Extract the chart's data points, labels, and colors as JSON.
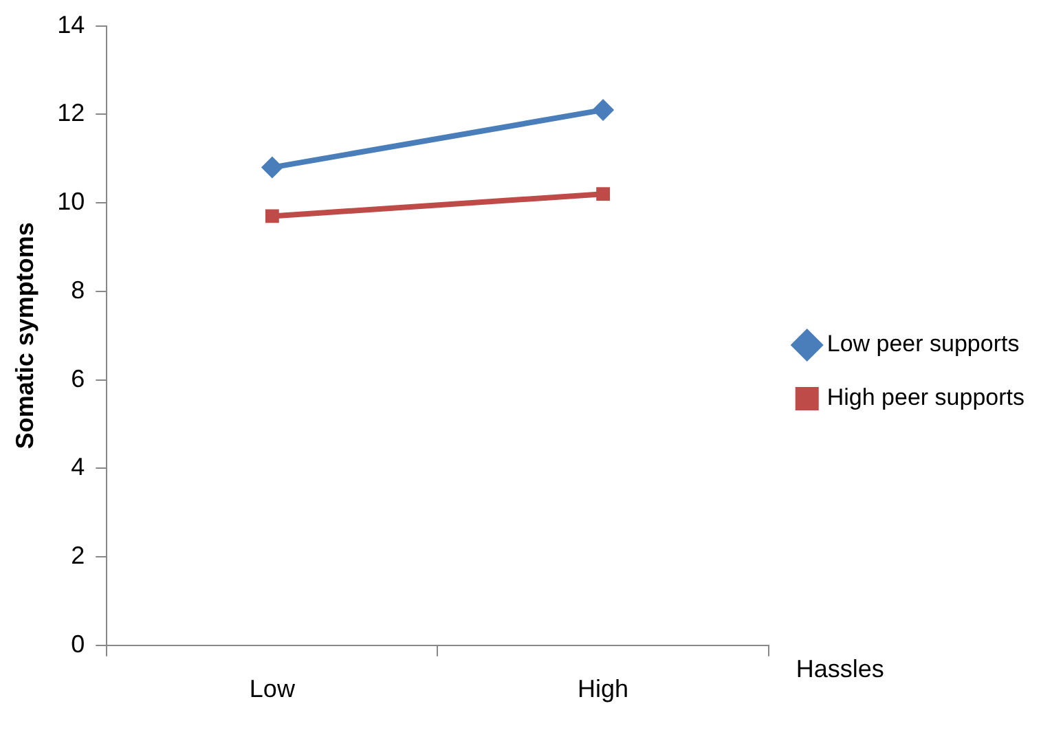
{
  "chart_data": {
    "type": "line",
    "xlabel": "Hassles",
    "ylabel": "Somatic symptoms",
    "categories": [
      "Low",
      "High"
    ],
    "series": [
      {
        "name": "Low peer supports",
        "color": "#4a7ebb",
        "values": [
          10.8,
          12.1
        ],
        "marker": "diamond"
      },
      {
        "name": "High peer supports",
        "color": "#be4b48",
        "values": [
          9.7,
          10.2
        ],
        "marker": "square"
      }
    ],
    "ylim": [
      0,
      14
    ],
    "yticks": [
      0,
      2,
      4,
      6,
      8,
      10,
      12,
      14
    ],
    "grid": false,
    "legend": "right"
  }
}
